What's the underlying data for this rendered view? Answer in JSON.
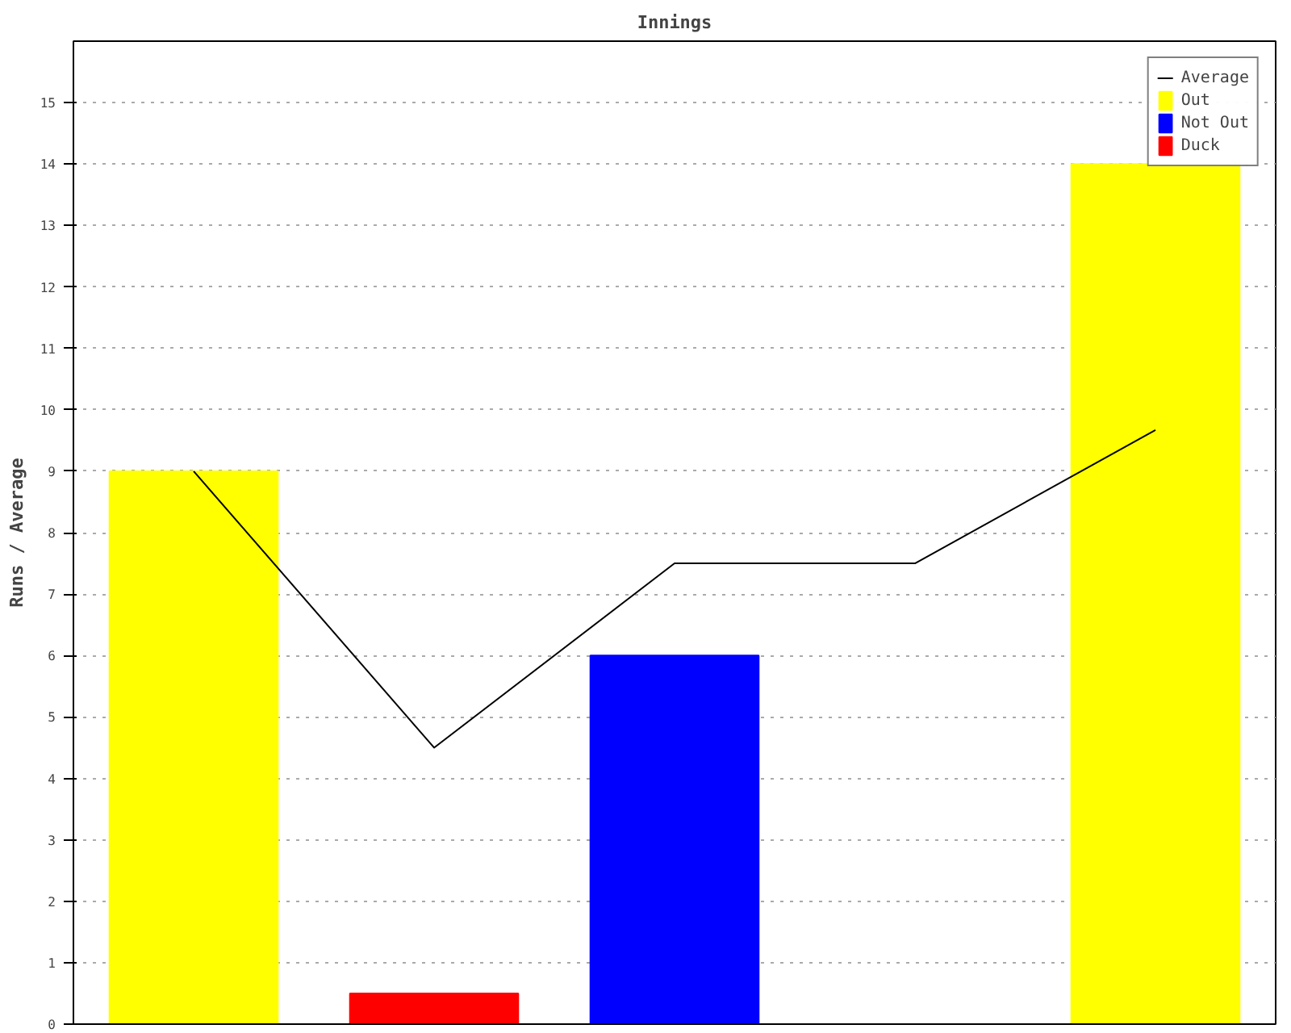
{
  "chart_data": {
    "type": "bar",
    "title": "Innings",
    "ylabel": "Runs / Average",
    "categories": [
      null,
      null,
      null,
      null,
      null
    ],
    "stacked": true,
    "series": [
      {
        "name": "Average",
        "type": "line",
        "color": "#000000",
        "values": [
          9,
          4.5,
          7.5,
          7.5,
          9.67
        ]
      },
      {
        "name": "Out",
        "color": "#ffff00",
        "values": [
          9,
          null,
          null,
          null,
          14
        ]
      },
      {
        "name": "Not Out",
        "color": "#0000ff",
        "values": [
          null,
          null,
          6,
          null,
          null
        ]
      },
      {
        "name": "Duck",
        "color": "#ff0000",
        "values": [
          null,
          0.5,
          null,
          null,
          null
        ]
      }
    ],
    "ylim": [
      0,
      16
    ],
    "yticks": [
      0,
      1,
      2,
      3,
      4,
      5,
      6,
      7,
      8,
      9,
      10,
      11,
      12,
      13,
      14,
      15
    ],
    "grid": "y",
    "legend": "top right"
  }
}
